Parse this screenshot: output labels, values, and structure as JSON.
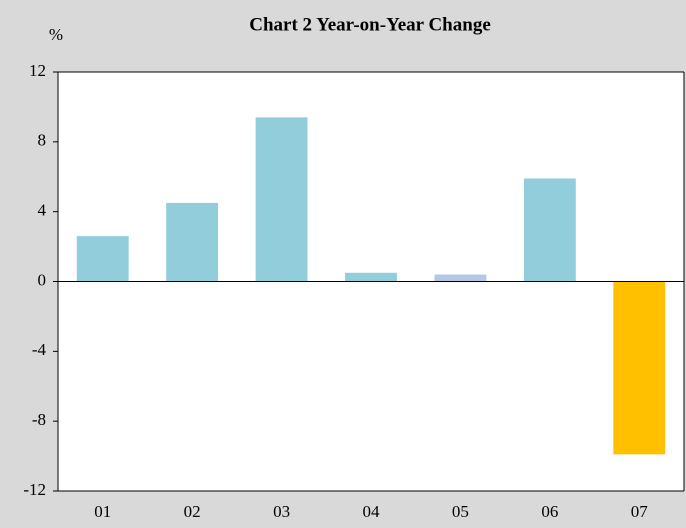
{
  "chart_data": {
    "type": "bar",
    "title": "Chart 2 Year-on-Year Change",
    "y_label": "%",
    "categories": [
      "01",
      "02",
      "03",
      "04",
      "05",
      "06",
      "07"
    ],
    "values": [
      2.6,
      4.5,
      9.4,
      0.5,
      0.4,
      5.9,
      -9.9
    ],
    "colors": [
      "#92cddc",
      "#92cddc",
      "#92cddc",
      "#92cddc",
      "#b4c7e7",
      "#92cddc",
      "#ffc000"
    ],
    "ylim": [
      -12,
      12
    ],
    "yticks": [
      -12,
      -8,
      -4,
      0,
      4,
      8,
      12
    ],
    "grid": false
  }
}
